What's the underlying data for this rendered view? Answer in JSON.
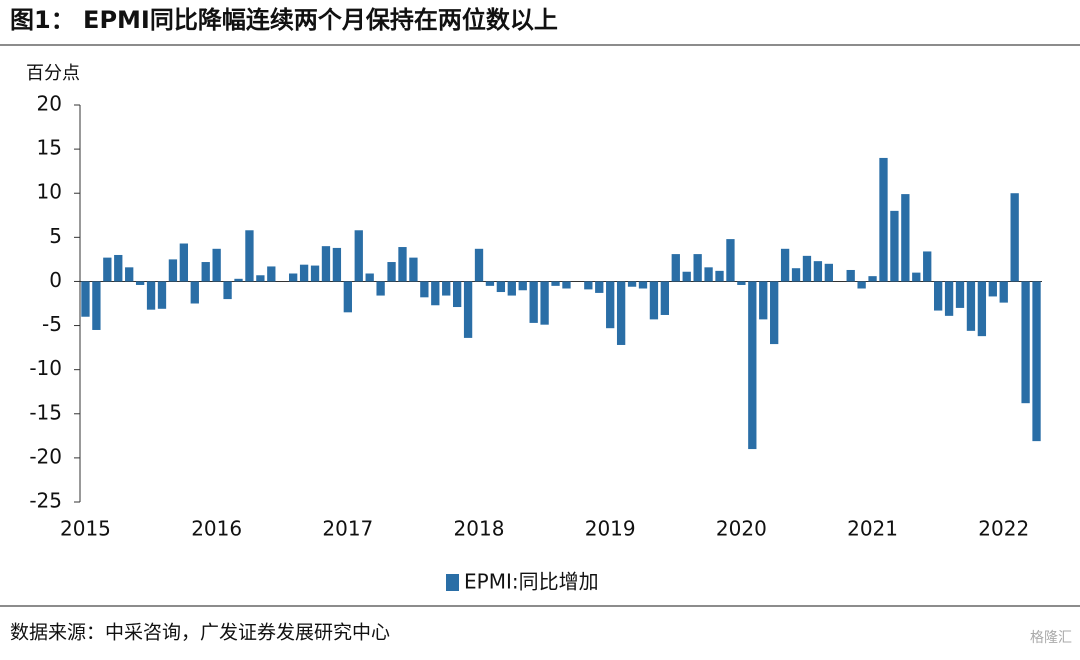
{
  "title": "图1：  EPMI同比降幅连续两个月保持在两位数以上",
  "source": "数据来源：中采咨询，广发证券发展研究中心",
  "watermark": "格隆汇",
  "chart_data": {
    "type": "bar",
    "y_unit_label": "百分点",
    "categories": [
      "2015",
      null,
      null,
      null,
      null,
      null,
      null,
      null,
      null,
      null,
      null,
      null,
      "2016",
      null,
      null,
      null,
      null,
      null,
      null,
      null,
      null,
      null,
      null,
      null,
      "2017",
      null,
      null,
      null,
      null,
      null,
      null,
      null,
      null,
      null,
      null,
      null,
      "2018",
      null,
      null,
      null,
      null,
      null,
      null,
      null,
      null,
      null,
      null,
      null,
      "2019",
      null,
      null,
      null,
      null,
      null,
      null,
      null,
      null,
      null,
      null,
      null,
      "2020",
      null,
      null,
      null,
      null,
      null,
      null,
      null,
      null,
      null,
      null,
      null,
      "2021",
      null,
      null,
      null,
      null,
      null,
      null,
      null,
      null,
      null,
      null,
      null,
      "2022",
      null,
      null,
      null
    ],
    "series": [
      {
        "name": "EPMI:同比增加",
        "color": "#2a6ea6",
        "values": [
          -4.0,
          -5.5,
          2.7,
          3.0,
          1.6,
          -0.4,
          -3.2,
          -3.1,
          2.5,
          4.3,
          -2.5,
          2.2,
          3.7,
          -2.0,
          0.3,
          5.8,
          0.7,
          1.7,
          0,
          0.9,
          1.9,
          1.8,
          4.0,
          3.8,
          -3.5,
          5.8,
          0.9,
          -1.6,
          2.2,
          3.9,
          2.7,
          -1.8,
          -2.7,
          -1.6,
          -2.9,
          -6.4,
          3.7,
          -0.5,
          -1.2,
          -1.6,
          -1.0,
          -4.7,
          -4.9,
          -0.5,
          -0.8,
          0,
          -0.9,
          -1.3,
          -5.3,
          -7.2,
          -0.6,
          -0.8,
          -4.3,
          -3.8,
          3.1,
          1.1,
          3.1,
          1.6,
          1.2,
          4.8,
          -0.4,
          -19.0,
          -4.3,
          -7.1,
          3.7,
          1.5,
          2.9,
          2.3,
          2.0,
          0,
          1.3,
          -0.8,
          0.6,
          14.0,
          8.0,
          9.9,
          1.0,
          3.4,
          -3.3,
          -3.9,
          -3.0,
          -5.6,
          -6.2,
          -1.7,
          -2.4,
          10.0,
          -13.8,
          -18.1
        ]
      }
    ],
    "ylim": [
      -25,
      20
    ],
    "yticks": [
      20,
      15,
      10,
      5,
      0,
      -5,
      -10,
      -15,
      -20,
      -25
    ],
    "legend": "bottom"
  }
}
